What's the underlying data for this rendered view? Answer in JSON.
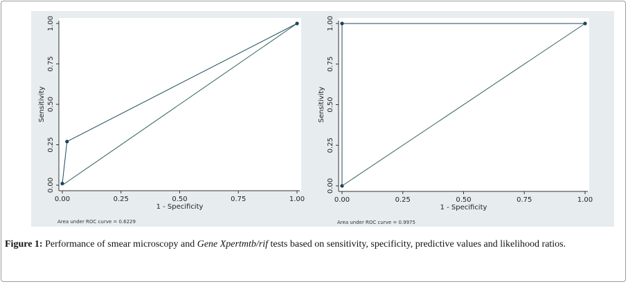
{
  "chart_data": [
    {
      "type": "line",
      "xlabel": "1 - Specificity",
      "ylabel": "Sensitivity",
      "xlim": [
        0,
        1
      ],
      "ylim": [
        0,
        1
      ],
      "xticks": [
        "0.00",
        "0.25",
        "0.50",
        "0.75",
        "1.00"
      ],
      "yticks": [
        "0.00",
        "0.25",
        "0.50",
        "0.75",
        "1.00"
      ],
      "grid": false,
      "series": [
        {
          "x": [
            0.0,
            0.02,
            1.0
          ],
          "y": [
            0.01,
            0.27,
            1.0
          ],
          "markers": true
        },
        {
          "x": [
            0.0,
            1.0
          ],
          "y": [
            0.0,
            1.0
          ],
          "markers": false
        }
      ],
      "annotation": "Area under ROC curve = 0.6229"
    },
    {
      "type": "line",
      "xlabel": "1 - Specificity",
      "ylabel": "Sensitivity",
      "xlim": [
        0,
        1
      ],
      "ylim": [
        0,
        1
      ],
      "xticks": [
        "0.00",
        "0.25",
        "0.50",
        "0.75",
        "1.00"
      ],
      "yticks": [
        "0.00",
        "0.25",
        "0.50",
        "0.75",
        "1.00"
      ],
      "grid": false,
      "series": [
        {
          "x": [
            0.0,
            0.0,
            1.0
          ],
          "y": [
            0.0,
            1.0,
            1.0
          ],
          "markers": true
        },
        {
          "x": [
            0.0,
            1.0
          ],
          "y": [
            0.0,
            1.0
          ],
          "markers": false
        }
      ],
      "annotation": "Area under ROC curve = 0.9975"
    }
  ],
  "caption": {
    "label": "Figure 1:",
    "text_before": " Performance of smear microscopy and ",
    "italic": "Gene Xpertmtb/rif",
    "text_after": " tests based on sensitivity, specificity, predictive values and likelihood ratios."
  },
  "colors": {
    "panel_bg": "#e7ecef",
    "line": "#1a4a5a",
    "diagonal": "#2e5f5a",
    "marker": "#1d3f5c"
  }
}
